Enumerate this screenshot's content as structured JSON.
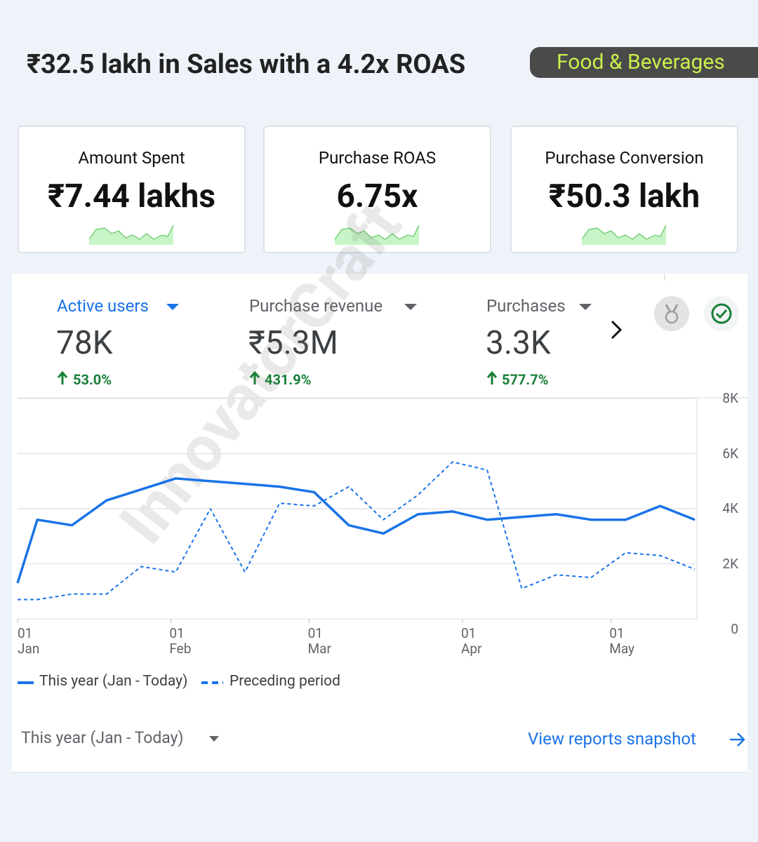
{
  "header": {
    "title": "₹32.5 lakh in Sales with a 4.2x ROAS",
    "tag": "Food & Beverages"
  },
  "kpis": [
    {
      "label": "Amount Spent",
      "value": "₹7.44 lakhs"
    },
    {
      "label": "Purchase ROAS",
      "value": "6.75x"
    },
    {
      "label": "Purchase Conversion",
      "value": "₹50.3 lakh"
    }
  ],
  "panel": {
    "metrics": [
      {
        "label": "Active users",
        "value": "78K",
        "change": "53.0%"
      },
      {
        "label": "Purchase revenue",
        "value": "₹5.3M",
        "change": "431.9%"
      },
      {
        "label": "Purchases",
        "value": "3.3K",
        "change": "577.7%"
      }
    ],
    "date_range": "This year (Jan - Today)",
    "link": "View reports snapshot",
    "watermark": "InnovatorCraft"
  },
  "chart_data": {
    "type": "line",
    "x": [
      0,
      4,
      11,
      18,
      25,
      32,
      39,
      46,
      53,
      60,
      67,
      74,
      81,
      88,
      95,
      102,
      109,
      116,
      123,
      130,
      137
    ],
    "xlim": [
      0,
      137
    ],
    "xticks": [
      {
        "value": 0,
        "label": "01 Jan"
      },
      {
        "value": 31,
        "label": "01 Feb"
      },
      {
        "value": 59,
        "label": "01 Mar"
      },
      {
        "value": 90,
        "label": "01 Apr"
      },
      {
        "value": 120,
        "label": "01 May"
      }
    ],
    "ylim": [
      0,
      8
    ],
    "yticks": [
      0,
      {
        "value": 2,
        "label": "2K"
      },
      {
        "value": 4,
        "label": "4K"
      },
      {
        "value": 6,
        "label": "6K"
      },
      {
        "value": 8,
        "label": "8K"
      }
    ],
    "grid": true,
    "series": [
      {
        "name": "This year (Jan - Today)",
        "color": "#1a73e8",
        "style": "solid",
        "values": [
          1.3,
          3.6,
          3.4,
          4.3,
          4.7,
          5.1,
          5.0,
          4.9,
          4.8,
          4.6,
          3.4,
          3.1,
          3.8,
          3.9,
          3.6,
          3.7,
          3.8,
          3.6,
          3.6,
          4.1,
          3.6
        ]
      },
      {
        "name": "Preceding period",
        "color": "#1a73e8",
        "style": "dashed",
        "values": [
          0.7,
          0.7,
          0.9,
          0.9,
          1.9,
          1.7,
          4.0,
          1.7,
          4.2,
          4.1,
          4.8,
          3.6,
          4.5,
          5.7,
          5.4,
          1.1,
          1.6,
          1.5,
          2.4,
          2.3,
          1.8
        ]
      }
    ]
  }
}
